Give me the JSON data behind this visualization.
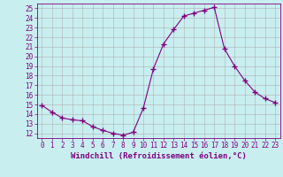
{
  "x": [
    0,
    1,
    2,
    3,
    4,
    5,
    6,
    7,
    8,
    9,
    10,
    11,
    12,
    13,
    14,
    15,
    16,
    17,
    18,
    19,
    20,
    21,
    22,
    23
  ],
  "y": [
    14.9,
    14.2,
    13.6,
    13.4,
    13.3,
    12.7,
    12.3,
    12.0,
    11.8,
    12.1,
    14.6,
    18.7,
    21.3,
    22.8,
    24.2,
    24.5,
    24.8,
    25.1,
    20.8,
    19.0,
    17.5,
    16.3,
    15.6,
    15.2
  ],
  "line_color": "#800080",
  "marker": "+",
  "marker_size": 4,
  "bg_color": "#c8eef0",
  "grid_color": "#b0b0b0",
  "xlabel": "Windchill (Refroidissement éolien,°C)",
  "xlim": [
    -0.5,
    23.5
  ],
  "ylim": [
    11.5,
    25.5
  ],
  "xticks": [
    0,
    1,
    2,
    3,
    4,
    5,
    6,
    7,
    8,
    9,
    10,
    11,
    12,
    13,
    14,
    15,
    16,
    17,
    18,
    19,
    20,
    21,
    22,
    23
  ],
  "yticks": [
    12,
    13,
    14,
    15,
    16,
    17,
    18,
    19,
    20,
    21,
    22,
    23,
    24,
    25
  ],
  "tick_color": "#800080",
  "label_color": "#800080",
  "tick_fontsize": 5.5,
  "xlabel_fontsize": 6.5
}
